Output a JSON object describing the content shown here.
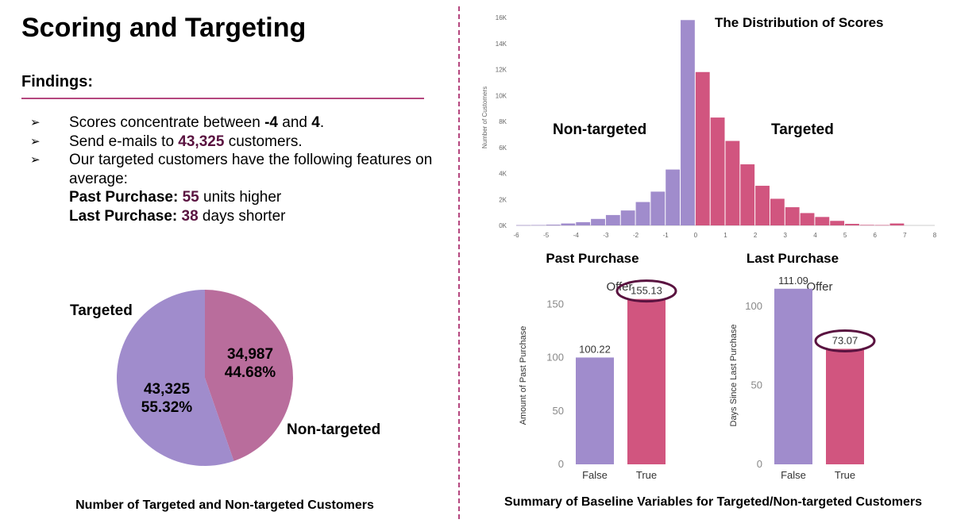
{
  "page": {
    "title": "Scoring and Targeting",
    "findings_heading": "Findings:",
    "bullet_glyph": "➢",
    "bullets": {
      "b1": {
        "pre": "Scores concentrate between ",
        "v1": "-4",
        "mid": " and ",
        "v2": "4",
        "post": "."
      },
      "b2": {
        "pre": "Send e-mails to ",
        "num": "43,325",
        "post": " customers."
      },
      "b3": {
        "text": "Our targeted customers have the following features on average:"
      },
      "past": {
        "label": "Past Purchase:",
        "num": "55",
        "post": " units higher"
      },
      "last": {
        "label": "Last Purchase:",
        "num": "38",
        "post": " days shorter"
      }
    },
    "pie_caption": "Number of Targeted and Non-targeted Customers",
    "bars_caption": "Summary of Baseline Variables for Targeted/Non-targeted Customers",
    "colors": {
      "purple": "#a08ccc",
      "pink": "#d1557f",
      "pink_pie": "#b96d9c",
      "accent": "#b5477f",
      "dark": "#5a1340"
    }
  },
  "chart_data": [
    {
      "type": "pie",
      "slices": [
        {
          "label": "Targeted",
          "count": "43,325",
          "percent": "55.32%",
          "value": 43325,
          "color": "#a08ccc"
        },
        {
          "label": "Non-targeted",
          "count": "34,987",
          "percent": "44.68%",
          "value": 34987,
          "color": "#b96d9c"
        }
      ]
    },
    {
      "type": "bar",
      "title": "The Distribution of Scores",
      "ylabel": "Number of Customers",
      "region_labels": [
        "Non-targeted",
        "Targeted"
      ],
      "xlim": [
        -6,
        8
      ],
      "ylim": [
        0,
        16000
      ],
      "xticks": [
        "-6",
        "-5",
        "-4",
        "-3",
        "-2",
        "-1",
        "0",
        "1",
        "2",
        "3",
        "4",
        "5",
        "6",
        "7",
        "8"
      ],
      "yticks": [
        "0K",
        "2K",
        "4K",
        "6K",
        "8K",
        "10K",
        "12K",
        "14K",
        "16K"
      ],
      "bins": [
        {
          "x": -5.5,
          "y": 20,
          "group": "non-targeted"
        },
        {
          "x": -5.0,
          "y": 30,
          "group": "non-targeted"
        },
        {
          "x": -4.5,
          "y": 60,
          "group": "non-targeted"
        },
        {
          "x": -4.0,
          "y": 150,
          "group": "non-targeted"
        },
        {
          "x": -3.5,
          "y": 250,
          "group": "non-targeted"
        },
        {
          "x": -3.0,
          "y": 500,
          "group": "non-targeted"
        },
        {
          "x": -2.5,
          "y": 800,
          "group": "non-targeted"
        },
        {
          "x": -2.0,
          "y": 1150,
          "group": "non-targeted"
        },
        {
          "x": -1.5,
          "y": 1800,
          "group": "non-targeted"
        },
        {
          "x": -1.0,
          "y": 2600,
          "group": "non-targeted"
        },
        {
          "x": -0.5,
          "y": 4300,
          "group": "non-targeted"
        },
        {
          "x": 0.0,
          "y": 15800,
          "group": "non-targeted"
        },
        {
          "x": 0.5,
          "y": 11800,
          "group": "targeted"
        },
        {
          "x": 1.0,
          "y": 8300,
          "group": "targeted"
        },
        {
          "x": 1.5,
          "y": 6500,
          "group": "targeted"
        },
        {
          "x": 2.0,
          "y": 4700,
          "group": "targeted"
        },
        {
          "x": 2.5,
          "y": 3050,
          "group": "targeted"
        },
        {
          "x": 3.0,
          "y": 2050,
          "group": "targeted"
        },
        {
          "x": 3.5,
          "y": 1400,
          "group": "targeted"
        },
        {
          "x": 4.0,
          "y": 950,
          "group": "targeted"
        },
        {
          "x": 4.5,
          "y": 650,
          "group": "targeted"
        },
        {
          "x": 5.0,
          "y": 350,
          "group": "targeted"
        },
        {
          "x": 5.5,
          "y": 120,
          "group": "targeted"
        },
        {
          "x": 6.0,
          "y": 40,
          "group": "targeted"
        },
        {
          "x": 6.5,
          "y": 30,
          "group": "targeted"
        },
        {
          "x": 7.0,
          "y": 150,
          "group": "targeted"
        }
      ]
    },
    {
      "type": "bar",
      "heading": "Past Purchase",
      "title": "Offer",
      "ylabel": "Amount of Past Purchase",
      "categories": [
        "False",
        "True"
      ],
      "values": [
        100.22,
        155.13
      ],
      "labels": [
        "100.22",
        "155.13"
      ],
      "highlight": 1,
      "ylim": [
        0,
        175
      ],
      "yticks": [
        "0",
        "50",
        "100",
        "150"
      ]
    },
    {
      "type": "bar",
      "heading": "Last Purchase",
      "title": "Offer",
      "ylabel": "Days Since Last Purchase",
      "categories": [
        "False",
        "True"
      ],
      "values": [
        111.09,
        73.07
      ],
      "labels": [
        "111.09",
        "73.07"
      ],
      "highlight": 1,
      "ylim": [
        0,
        118
      ],
      "yticks": [
        "0",
        "50",
        "100"
      ]
    }
  ]
}
